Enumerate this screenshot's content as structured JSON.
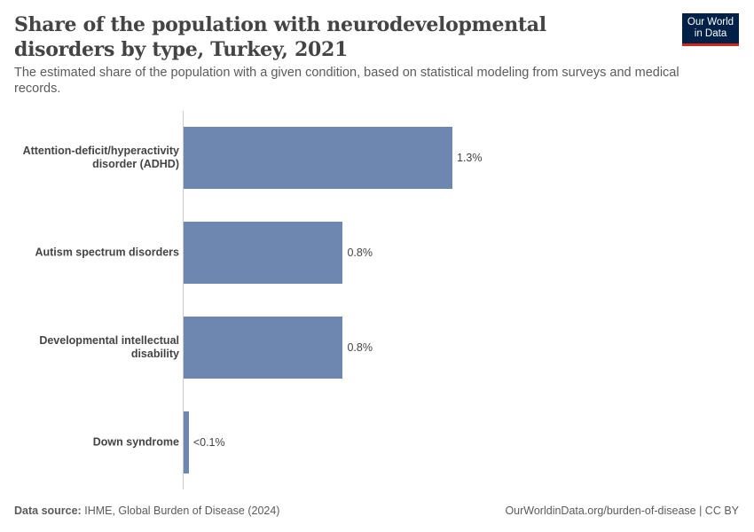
{
  "chart_data": {
    "type": "bar",
    "orientation": "horizontal",
    "title": "Share of the population with neurodevelopmental disorders by type, Turkey, 2021",
    "subtitle": "The estimated share of the population with a given condition, based on statistical modeling from surveys and medical records.",
    "categories": [
      "Attention-deficit/hyperactivity disorder (ADHD)",
      "Autism spectrum disorders",
      "Developmental intellectual disability",
      "Down syndrome"
    ],
    "values": [
      1.3,
      0.77,
      0.77,
      0.025
    ],
    "value_labels": [
      "1.3%",
      "0.8%",
      "0.8%",
      "<0.1%"
    ],
    "color": "#6d87b1"
  },
  "logo": "Our World in Data",
  "footer": {
    "source_label": "Data source:",
    "source": "IHME, Global Burden of Disease (2024)",
    "url": "OurWorldinData.org/burden-of-disease | CC BY"
  }
}
